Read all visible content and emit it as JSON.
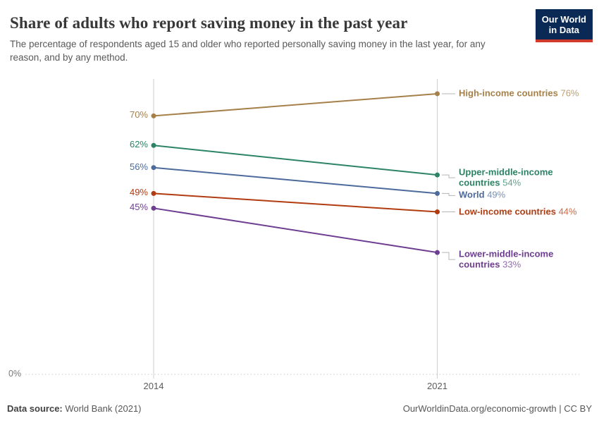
{
  "header": {
    "title": "Share of adults who report saving money in the past year",
    "subtitle": "The percentage of respondents aged 15 and older who reported personally saving money in the last year, for any reason, and by any method."
  },
  "logo": {
    "line1": "Our World",
    "line2": "in Data",
    "bg_color": "#0a2a55",
    "stripe_color": "#d23a2c"
  },
  "chart_data": {
    "type": "line",
    "title": "Share of adults who report saving money in the past year",
    "x": [
      2014,
      2021
    ],
    "x_tick_labels": [
      "2014",
      "2021"
    ],
    "ylim": [
      0,
      80
    ],
    "y_baseline_label": "0%",
    "grid": "dotted baseline at 0% only",
    "legend_position": "inline labels right of lines",
    "series": [
      {
        "name": "High-income countries",
        "values": [
          70,
          76
        ],
        "start_label": "70%",
        "end_label": "76%",
        "color": "#A5804A"
      },
      {
        "name": "Upper-middle-income countries",
        "values": [
          62,
          54
        ],
        "start_label": "62%",
        "end_label": "54%",
        "color": "#2C8465"
      },
      {
        "name": "World",
        "values": [
          56,
          49
        ],
        "start_label": "56%",
        "end_label": "49%",
        "color": "#4C6A9C"
      },
      {
        "name": "Low-income countries",
        "values": [
          49,
          44
        ],
        "start_label": "49%",
        "end_label": "44%",
        "color": "#B23C11"
      },
      {
        "name": "Lower-middle-income countries",
        "values": [
          45,
          33
        ],
        "start_label": "45%",
        "end_label": "33%",
        "color": "#6D3E91"
      }
    ]
  },
  "footer": {
    "source_label": "Data source:",
    "source_value": " World Bank (2021)",
    "credit": "OurWorldinData.org/economic-growth | CC BY"
  }
}
